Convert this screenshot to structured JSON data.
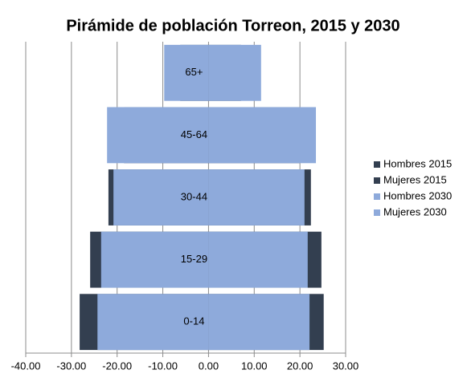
{
  "chart_data": {
    "type": "pyramid",
    "title": "Pirámide de población Torreon, 2015 y 2030",
    "categories": [
      "0-14",
      "15-29",
      "30-44",
      "45-64",
      "65+"
    ],
    "series": [
      {
        "name": "Hombres 2015",
        "color": "#333f50",
        "values": [
          -28.2,
          -25.9,
          -21.9,
          -18.5,
          -6.2
        ]
      },
      {
        "name": "Mujeres 2015",
        "color": "#333f50",
        "values": [
          25.2,
          24.7,
          22.4,
          20.0,
          7.1
        ]
      },
      {
        "name": "Hombres 2030",
        "color": "#8eaadb",
        "values": [
          -24.3,
          -23.5,
          -20.8,
          -22.2,
          -9.7
        ]
      },
      {
        "name": "Mujeres 2030",
        "color": "#8eaadb",
        "values": [
          22.1,
          21.7,
          21.0,
          23.5,
          11.5
        ]
      }
    ],
    "xlim": [
      -40,
      30
    ],
    "xticks": [
      {
        "value": -40,
        "label": "-40.00"
      },
      {
        "value": -30,
        "label": "-30.00"
      },
      {
        "value": -20,
        "label": "-20.00"
      },
      {
        "value": -10,
        "label": "-10.00"
      },
      {
        "value": 0,
        "label": "0.00"
      },
      {
        "value": 10,
        "label": "10.00"
      },
      {
        "value": 20,
        "label": "20.00"
      },
      {
        "value": 30,
        "label": "30.00"
      }
    ],
    "grid": true,
    "legend": "right"
  }
}
